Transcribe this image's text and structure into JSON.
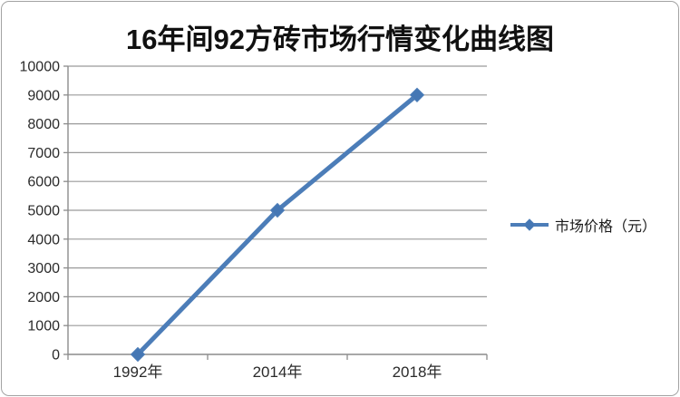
{
  "chart_data": {
    "type": "line",
    "title": "16年间92方砖市场行情变化曲线图",
    "categories": [
      "1992年",
      "2014年",
      "2018年"
    ],
    "series": [
      {
        "name": "市场价格（元）",
        "values": [
          0,
          5000,
          9000
        ]
      }
    ],
    "xlabel": "",
    "ylabel": "",
    "ylim": [
      0,
      10000
    ],
    "ytick_step": 1000,
    "grid": true,
    "legend_position": "right",
    "marker": "diamond",
    "colors": {
      "line": "#4c7db8",
      "marker": "#4577b4",
      "grid": "#9a9a9a",
      "axis": "#8c8c8c",
      "tick_text": "#2b2b2b",
      "title_text": "#111111",
      "frame_border": "#a3a3a3",
      "background": "#ffffff"
    }
  }
}
